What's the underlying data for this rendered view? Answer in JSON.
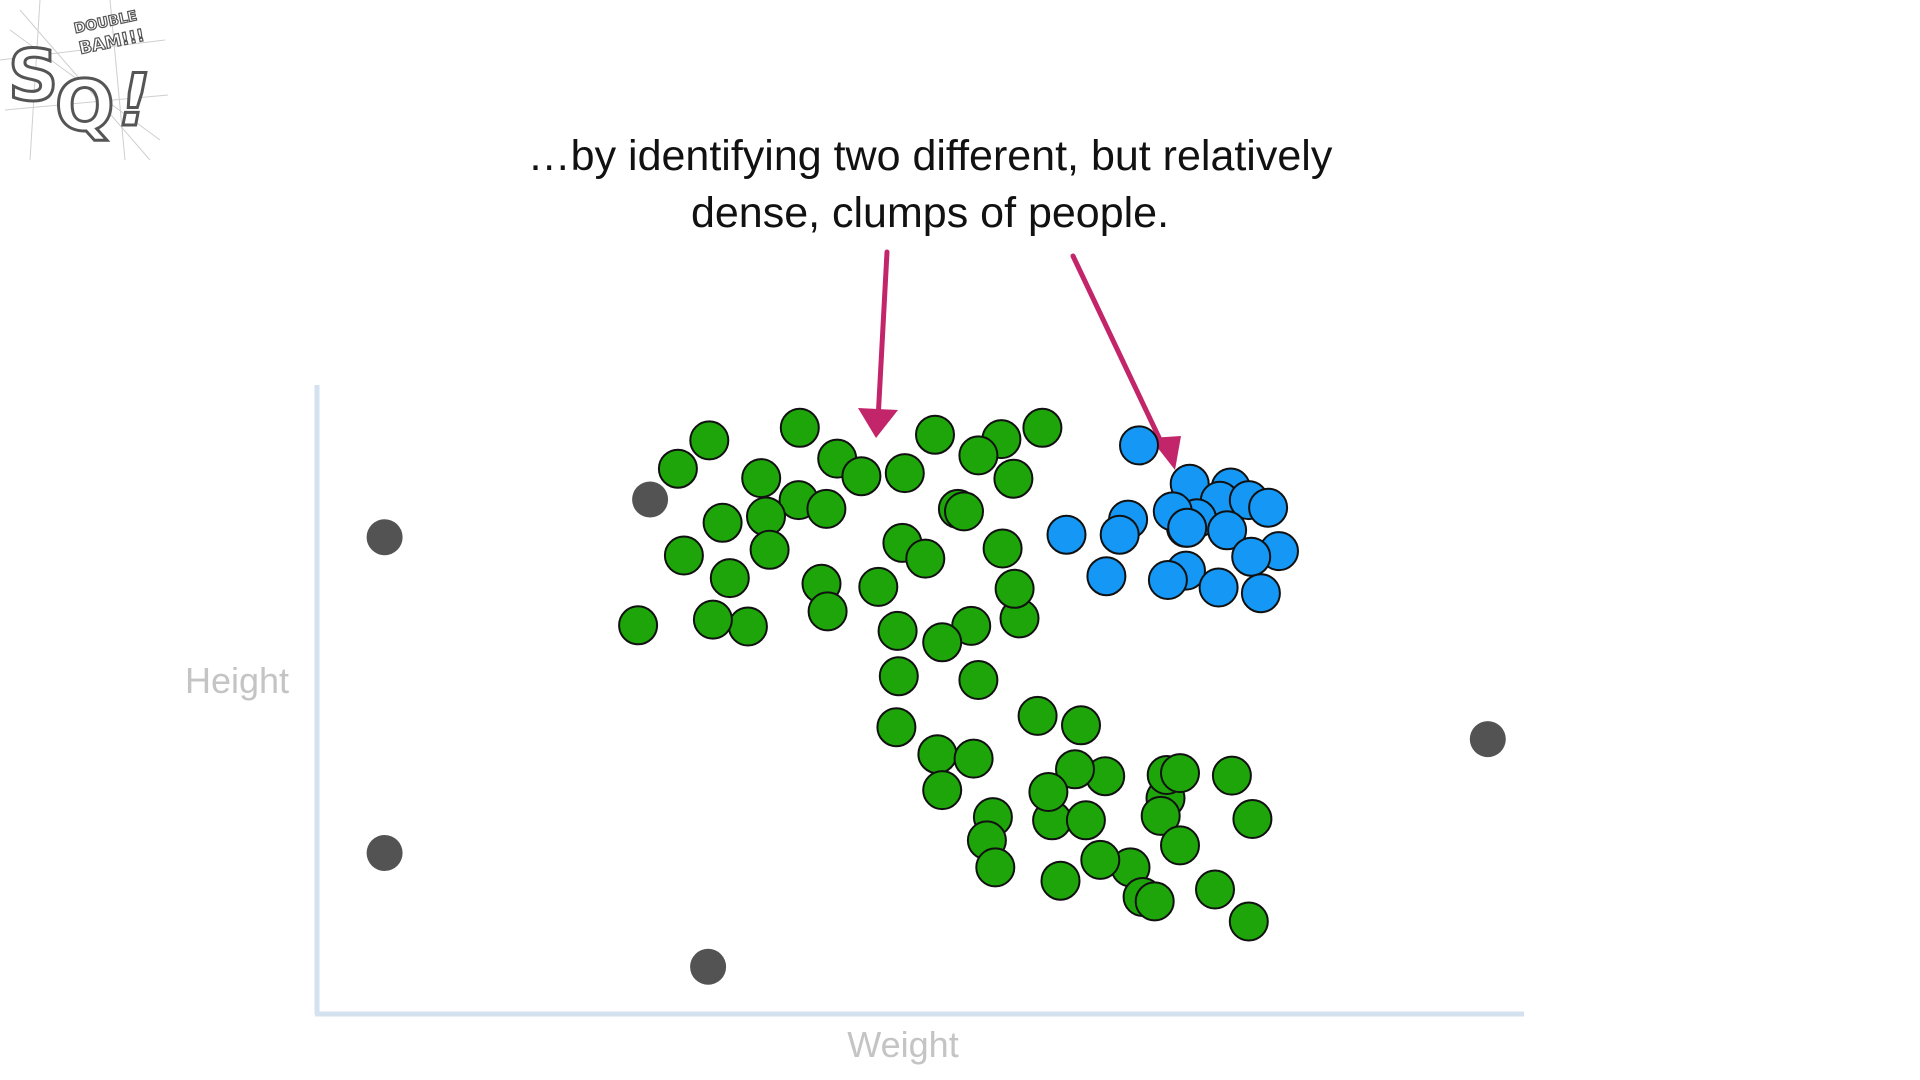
{
  "caption": {
    "line1": "…by identifying two different, but relatively",
    "line2": "dense, clumps of people."
  },
  "logo": {
    "text": "StatQuest",
    "small_text": "DOUBLE BAM!!!",
    "icon": "statquest-logo"
  },
  "colors": {
    "cluster_green": "#1ea50a",
    "cluster_blue": "#1497f5",
    "outlier": "#535353",
    "axis": "#d3e2ee",
    "arrow": "#c2256a"
  },
  "chart_data": {
    "type": "scatter",
    "xlabel": "Weight",
    "ylabel": "Height",
    "xlim": [
      0,
      100
    ],
    "ylim": [
      0,
      100
    ],
    "grid": false,
    "legend": "none",
    "series": [
      {
        "color": "#1ea50a",
        "points": [
          [
            32.5,
            91.2
          ],
          [
            40.0,
            93.2
          ],
          [
            60.1,
            93.2
          ],
          [
            56.7,
            91.4
          ],
          [
            54.8,
            88.8
          ],
          [
            51.2,
            92.1
          ],
          [
            43.1,
            88.3
          ],
          [
            36.8,
            85.2
          ],
          [
            39.9,
            81.7
          ],
          [
            48.7,
            86.0
          ],
          [
            45.1,
            85.5
          ],
          [
            57.7,
            85.1
          ],
          [
            42.2,
            80.3
          ],
          [
            48.5,
            74.9
          ],
          [
            33.6,
            78.1
          ],
          [
            29.9,
            86.7
          ],
          [
            37.2,
            79.1
          ],
          [
            53.1,
            80.3
          ],
          [
            50.4,
            72.4
          ],
          [
            56.8,
            74.0
          ],
          [
            53.6,
            79.9
          ],
          [
            34.2,
            69.3
          ],
          [
            37.5,
            73.8
          ],
          [
            30.4,
            72.9
          ],
          [
            41.8,
            68.4
          ],
          [
            46.5,
            67.9
          ],
          [
            54.2,
            61.7
          ],
          [
            51.8,
            59.1
          ],
          [
            58.2,
            62.9
          ],
          [
            42.3,
            64.0
          ],
          [
            26.6,
            61.8
          ],
          [
            35.7,
            61.6
          ],
          [
            32.8,
            62.7
          ],
          [
            48.1,
            60.9
          ],
          [
            57.8,
            67.6
          ],
          [
            54.8,
            53.1
          ],
          [
            59.7,
            47.4
          ],
          [
            48.2,
            53.7
          ],
          [
            48.0,
            45.6
          ],
          [
            51.4,
            41.3
          ],
          [
            54.4,
            40.6
          ],
          [
            63.3,
            45.9
          ],
          [
            65.3,
            37.8
          ],
          [
            62.8,
            38.9
          ],
          [
            60.9,
            30.8
          ],
          [
            56.0,
            31.3
          ],
          [
            51.8,
            35.6
          ],
          [
            60.6,
            35.3
          ],
          [
            70.3,
            34.3
          ],
          [
            70.4,
            38.0
          ],
          [
            69.9,
            31.5
          ],
          [
            71.5,
            26.8
          ],
          [
            67.4,
            23.3
          ],
          [
            71.5,
            38.3
          ],
          [
            64.9,
            24.5
          ],
          [
            63.7,
            30.8
          ],
          [
            75.8,
            37.9
          ],
          [
            77.5,
            31.0
          ],
          [
            61.6,
            21.2
          ],
          [
            68.4,
            18.6
          ],
          [
            69.4,
            17.9
          ],
          [
            74.4,
            19.8
          ],
          [
            77.2,
            14.7
          ],
          [
            55.5,
            27.6
          ],
          [
            56.2,
            23.3
          ]
        ]
      },
      {
        "color": "#1497f5",
        "points": [
          [
            68.1,
            90.4
          ],
          [
            67.2,
            78.6
          ],
          [
            75.7,
            83.7
          ],
          [
            72.3,
            84.3
          ],
          [
            74.8,
            81.6
          ],
          [
            77.2,
            81.7
          ],
          [
            72.9,
            78.8
          ],
          [
            78.8,
            80.5
          ],
          [
            72.0,
            77.3
          ],
          [
            75.4,
            76.9
          ],
          [
            79.7,
            73.6
          ],
          [
            62.1,
            76.2
          ],
          [
            66.5,
            76.2
          ],
          [
            70.9,
            79.9
          ],
          [
            72.1,
            77.3
          ],
          [
            77.4,
            72.7
          ],
          [
            72.0,
            70.5
          ],
          [
            65.4,
            69.6
          ],
          [
            70.5,
            69.0
          ],
          [
            74.7,
            67.8
          ],
          [
            78.2,
            66.9
          ]
        ]
      },
      {
        "color": "#535353",
        "points": [
          [
            5.6,
            75.8
          ],
          [
            27.6,
            81.8
          ],
          [
            97.0,
            43.7
          ],
          [
            5.6,
            25.6
          ],
          [
            32.4,
            7.5
          ]
        ]
      }
    ]
  }
}
